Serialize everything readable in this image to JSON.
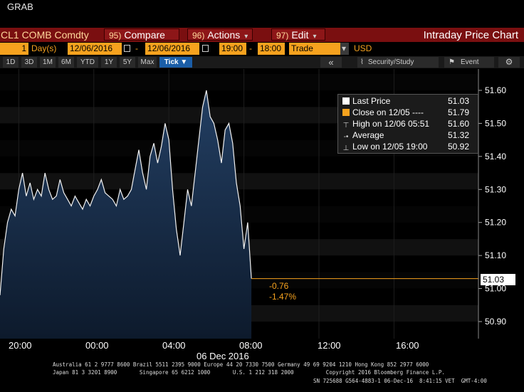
{
  "top": {
    "grab_label": "GRAB"
  },
  "command_bar": {
    "ticker": "CL1 COMB Comdty",
    "compare": {
      "num": "95)",
      "label": "Compare"
    },
    "actions": {
      "num": "96)",
      "label": "Actions"
    },
    "edit": {
      "num": "97)",
      "label": "Edit"
    },
    "title": "Intraday Price Chart"
  },
  "params": {
    "period_count": "1",
    "period_unit": "Day(s)",
    "start_date": "12/06/2016",
    "end_date": "12/06/2016",
    "start_time": "19:00",
    "end_time": "18:00",
    "market": "Trade",
    "currency": "USD"
  },
  "toolbar": {
    "ranges": [
      "1D",
      "3D",
      "1M",
      "6M",
      "YTD",
      "1Y",
      "5Y",
      "Max"
    ],
    "tick_label": "Tick ▼",
    "collapse_label": "«",
    "security_study_label": "Security/Study",
    "event_label": "Event",
    "settings_icon": "gear-icon"
  },
  "legend": {
    "rows": [
      {
        "label": "Last Price",
        "value": "51.03",
        "icon": "white-square"
      },
      {
        "label": "Close on 12/05 ----",
        "value": "51.79",
        "icon": "orange-square"
      },
      {
        "label": "High on 12/06 05:51",
        "value": "51.60",
        "icon": "high-marker"
      },
      {
        "label": "Average",
        "value": "51.32",
        "icon": "average-marker"
      },
      {
        "label": "Low on 12/05 19:00",
        "value": "50.92",
        "icon": "low-marker"
      }
    ]
  },
  "labels": {
    "last_price": "51.03",
    "net_change": "-0.76",
    "pct_change": "-1.47%"
  },
  "colors": {
    "command_bar": "#7a0f10",
    "param_fields": "#f6a21e",
    "area_fill": "#1e3350",
    "last_price_line": "#f6a21e",
    "active_range": "#1b5ea8"
  },
  "chart_data": {
    "type": "area",
    "y_ticks": [
      "51.60",
      "51.50",
      "51.40",
      "51.30",
      "51.20",
      "51.10",
      "51.00",
      "50.90"
    ],
    "ylim": [
      50.86,
      51.63
    ],
    "x_ticks": [
      "20:00",
      "00:00",
      "04:00",
      "08:00",
      "12:00",
      "16:00"
    ],
    "x_tick_hours": [
      20,
      24,
      28,
      32,
      36,
      40
    ],
    "xlim_hours": [
      19,
      44.5
    ],
    "date_label": "06 Dec 2016",
    "reference_line": 51.03,
    "series": [
      {
        "x_hours": [
          19.0,
          19.2,
          19.4,
          19.6,
          19.8,
          20.0,
          20.2,
          20.4,
          20.6,
          20.8,
          21.0,
          21.2,
          21.4,
          21.6,
          21.8,
          22.0,
          22.2,
          22.4,
          22.6,
          22.8,
          23.0,
          23.2,
          23.4,
          23.6,
          23.8,
          24.0,
          24.2,
          24.4,
          24.6,
          24.8,
          25.0,
          25.2,
          25.4,
          25.6,
          25.8,
          26.0,
          26.2,
          26.4,
          26.6,
          26.8,
          27.0,
          27.2,
          27.4,
          27.6,
          27.8,
          28.0,
          28.2,
          28.4,
          28.6,
          28.8,
          29.0,
          29.2,
          29.4,
          29.6,
          29.8,
          30.0,
          30.2,
          30.4,
          30.6,
          30.8,
          31.0,
          31.2,
          31.4,
          31.6,
          31.8,
          32.0,
          32.2,
          32.4
        ],
        "values": [
          50.98,
          51.12,
          51.2,
          51.24,
          51.22,
          51.3,
          51.35,
          51.28,
          51.32,
          51.27,
          51.3,
          51.28,
          51.35,
          51.3,
          51.27,
          51.28,
          51.33,
          51.29,
          51.27,
          51.25,
          51.28,
          51.26,
          51.24,
          51.27,
          51.25,
          51.28,
          51.3,
          51.33,
          51.29,
          51.28,
          51.27,
          51.25,
          51.3,
          51.27,
          51.28,
          51.3,
          51.36,
          51.42,
          51.35,
          51.3,
          51.4,
          51.44,
          51.38,
          51.43,
          51.5,
          51.45,
          51.3,
          51.18,
          51.1,
          51.2,
          51.3,
          51.25,
          51.35,
          51.45,
          51.55,
          51.6,
          51.52,
          51.5,
          51.45,
          51.38,
          51.48,
          51.5,
          51.44,
          51.32,
          51.25,
          51.12,
          51.2,
          51.03
        ]
      }
    ]
  },
  "footer": {
    "line1": "Australia 61 2 9777 8600 Brazil 5511 2395 9000 Europe 44 20 7330 7500 Germany 49 69 9204 1210 Hong Kong 852 2977 6000",
    "line2": "Japan 81 3 3201 8900       Singapore 65 6212 1000       U.S. 1 212 318 2000          Copyright 2016 Bloomberg Finance L.P.",
    "line3": "SN 725688 G564-4883-1 06-Dec-16  8:41:15 VET  GMT-4:00"
  }
}
